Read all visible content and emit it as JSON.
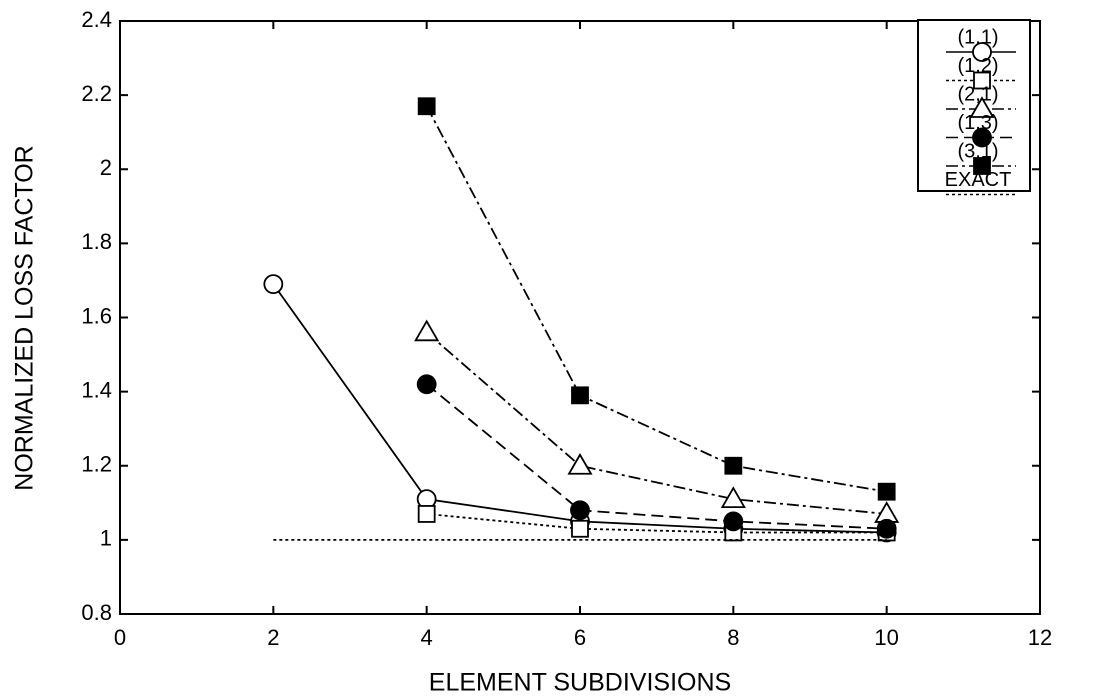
{
  "chart_data": {
    "type": "line",
    "xlabel": "ELEMENT SUBDIVISIONS",
    "ylabel": "NORMALIZED LOSS FACTOR",
    "xlim": [
      0,
      12
    ],
    "xticks": [
      0,
      2,
      4,
      6,
      8,
      10,
      12
    ],
    "ylim": [
      0.8,
      2.4
    ],
    "yticks": [
      0.8,
      1,
      1.2,
      1.4,
      1.6,
      1.8,
      2,
      2.2,
      2.4
    ],
    "legend": "upper right",
    "series": [
      {
        "name": "(1,1)",
        "color": "#000000",
        "marker": "circle",
        "dash": "solid",
        "x": [
          2,
          4,
          6,
          8,
          10
        ],
        "values": [
          1.69,
          1.11,
          1.05,
          1.03,
          1.02
        ]
      },
      {
        "name": "(1,2)",
        "color": "#000000",
        "marker": "square",
        "dash": "dotted",
        "x": [
          4,
          6,
          8,
          10
        ],
        "values": [
          1.07,
          1.03,
          1.02,
          1.02
        ]
      },
      {
        "name": "(2,1)",
        "color": "#000000",
        "marker": "triangle",
        "dash": "dashdot",
        "x": [
          4,
          6,
          8,
          10
        ],
        "values": [
          1.56,
          1.2,
          1.11,
          1.07
        ]
      },
      {
        "name": "(1,3)",
        "color": "#000000",
        "marker": "filled-circle",
        "dash": "dashed",
        "x": [
          4,
          6,
          8,
          10
        ],
        "values": [
          1.42,
          1.08,
          1.05,
          1.03
        ]
      },
      {
        "name": "(3,1)",
        "color": "#000000",
        "marker": "filled-square",
        "dash": "dashdot",
        "x": [
          4,
          6,
          8,
          10
        ],
        "values": [
          2.17,
          1.39,
          1.2,
          1.13
        ]
      },
      {
        "name": "EXACT",
        "color": "#000000",
        "dash": "dotted",
        "x": [
          2,
          10
        ],
        "values": [
          1,
          1
        ]
      }
    ]
  }
}
